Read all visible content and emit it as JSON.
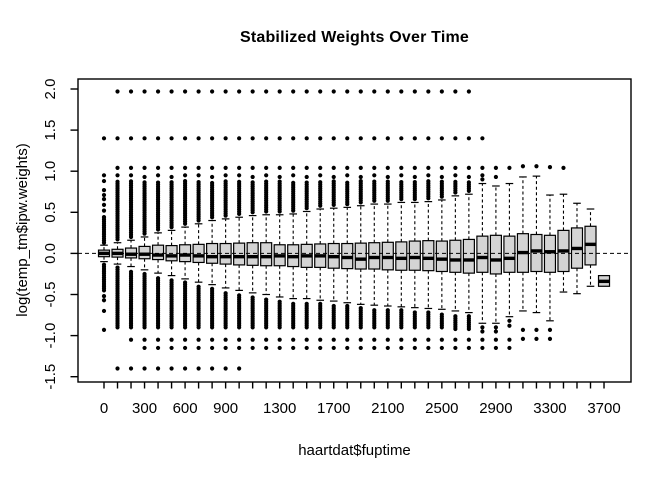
{
  "title": "Stabilized Weights Over Time",
  "colors": {
    "box_fill": "#d4d4d4",
    "line": "#000000",
    "background": "#ffffff"
  },
  "chart_data": {
    "type": "boxplot",
    "title": "Stabilized Weights Over Time",
    "xlabel": "haartdat$fuptime",
    "ylabel": "log(temp_tm$ipw.weights)",
    "ylim": [
      -1.56,
      2.14
    ],
    "reference_line": {
      "y": 0,
      "style": "dashed"
    },
    "grid": "off",
    "y_axis": {
      "tick_values": [
        2.0,
        1.5,
        1.0,
        0.5,
        0.0,
        -0.5,
        -1.0,
        -1.5
      ],
      "tick_labels": [
        "2.0",
        "1.5",
        "1.0",
        "0.5",
        "0.0",
        "-0.5",
        "-1.0",
        "-1.5"
      ]
    },
    "x_axis": {
      "labeled_ticks": [
        {
          "value": 0,
          "label": "0"
        },
        {
          "value": 300,
          "label": "300"
        },
        {
          "value": 600,
          "label": "600"
        },
        {
          "value": 900,
          "label": "900"
        },
        {
          "value": 1300,
          "label": "1300"
        },
        {
          "value": 1700,
          "label": "1700"
        },
        {
          "value": 2100,
          "label": "2100"
        },
        {
          "value": 2500,
          "label": "2500"
        },
        {
          "value": 2900,
          "label": "2900"
        },
        {
          "value": 3300,
          "label": "3300"
        },
        {
          "value": 3700,
          "label": "3700"
        }
      ]
    },
    "boxes": [
      {
        "x": 0,
        "median": 0.0,
        "q1": -0.04,
        "q3": 0.04,
        "whisker_low": -0.1,
        "whisker_high": 0.1,
        "out_high_band": [
          0.13,
          0.45
        ],
        "out_high": [
          0.52,
          0.59,
          0.66,
          0.71,
          0.77,
          0.88,
          0.95,
          1.4
        ],
        "out_low_band": [
          -0.13,
          -0.45
        ],
        "out_low": [
          -0.52,
          -0.57,
          -0.7,
          -0.93
        ]
      },
      {
        "x": 100,
        "median": 0.0,
        "q1": -0.045,
        "q3": 0.05,
        "whisker_low": -0.13,
        "whisker_high": 0.13,
        "out_high_band": [
          0.17,
          0.88
        ],
        "out_high": [
          0.95,
          1.04,
          1.4,
          1.97
        ],
        "out_low_band": [
          -0.17,
          -0.9
        ],
        "out_low": [
          -1.4
        ]
      },
      {
        "x": 200,
        "median": -0.01,
        "q1": -0.055,
        "q3": 0.065,
        "whisker_low": -0.16,
        "whisker_high": 0.16,
        "out_high_band": [
          0.2,
          0.88
        ],
        "out_high": [
          0.95,
          1.04,
          1.4,
          1.97
        ],
        "out_low_band": [
          -0.2,
          -0.9
        ],
        "out_low": [
          -1.05,
          -1.4
        ]
      },
      {
        "x": 300,
        "median": -0.01,
        "q1": -0.065,
        "q3": 0.085,
        "whisker_low": -0.2,
        "whisker_high": 0.2,
        "out_high_band": [
          0.24,
          0.88
        ],
        "out_high": [
          0.93,
          1.04,
          1.4,
          1.97
        ],
        "out_low_band": [
          -0.24,
          -0.9
        ],
        "out_low": [
          -1.05,
          -1.15,
          -1.4
        ]
      },
      {
        "x": 400,
        "median": -0.02,
        "q1": -0.075,
        "q3": 0.1,
        "whisker_low": -0.24,
        "whisker_high": 0.25,
        "out_high_band": [
          0.29,
          0.88
        ],
        "out_high": [
          0.95,
          1.04,
          1.4,
          1.97
        ],
        "out_low_band": [
          -0.28,
          -0.9
        ],
        "out_low": [
          -1.05,
          -1.15,
          -1.4
        ]
      },
      {
        "x": 500,
        "median": -0.03,
        "q1": -0.09,
        "q3": 0.095,
        "whisker_low": -0.27,
        "whisker_high": 0.28,
        "out_high_band": [
          0.32,
          0.88
        ],
        "out_high": [
          0.93,
          1.04,
          1.4,
          1.97
        ],
        "out_low_band": [
          -0.31,
          -0.9
        ],
        "out_low": [
          -1.05,
          -1.15,
          -1.4
        ]
      },
      {
        "x": 600,
        "median": -0.02,
        "q1": -0.1,
        "q3": 0.105,
        "whisker_low": -0.31,
        "whisker_high": 0.32,
        "out_high_band": [
          0.36,
          0.88
        ],
        "out_high": [
          0.95,
          1.04,
          1.4,
          1.97
        ],
        "out_low_band": [
          -0.35,
          -0.9
        ],
        "out_low": [
          -1.05,
          -1.15,
          -1.4
        ]
      },
      {
        "x": 700,
        "median": -0.03,
        "q1": -0.11,
        "q3": 0.11,
        "whisker_low": -0.35,
        "whisker_high": 0.36,
        "out_high_band": [
          0.4,
          0.88
        ],
        "out_high": [
          0.95,
          1.04,
          1.4,
          1.97
        ],
        "out_low_band": [
          -0.39,
          -0.9
        ],
        "out_low": [
          -1.05,
          -1.15,
          -1.4
        ]
      },
      {
        "x": 800,
        "median": -0.04,
        "q1": -0.12,
        "q3": 0.12,
        "whisker_low": -0.38,
        "whisker_high": 0.4,
        "out_high_band": [
          0.44,
          0.88
        ],
        "out_high": [
          0.93,
          1.04,
          1.4,
          1.97
        ],
        "out_low_band": [
          -0.42,
          -0.9
        ],
        "out_low": [
          -1.05,
          -1.15,
          -1.4
        ]
      },
      {
        "x": 900,
        "median": -0.04,
        "q1": -0.13,
        "q3": 0.12,
        "whisker_low": -0.42,
        "whisker_high": 0.42,
        "out_high_band": [
          0.46,
          0.88
        ],
        "out_high": [
          0.95,
          1.04,
          1.4,
          1.97
        ],
        "out_low_band": [
          -0.46,
          -0.9
        ],
        "out_low": [
          -1.05,
          -1.15,
          -1.4
        ]
      },
      {
        "x": 1000,
        "median": -0.04,
        "q1": -0.14,
        "q3": 0.125,
        "whisker_low": -0.45,
        "whisker_high": 0.44,
        "out_high_band": [
          0.48,
          0.88
        ],
        "out_high": [
          0.95,
          1.04,
          1.4,
          1.97
        ],
        "out_low_band": [
          -0.49,
          -0.9
        ],
        "out_low": [
          -1.05,
          -1.15,
          -1.4
        ]
      },
      {
        "x": 1100,
        "median": -0.04,
        "q1": -0.145,
        "q3": 0.13,
        "whisker_low": -0.48,
        "whisker_high": 0.46,
        "out_high_band": [
          0.5,
          0.88
        ],
        "out_high": [
          0.93,
          1.04,
          1.4,
          1.97
        ],
        "out_low_band": [
          -0.52,
          -0.9
        ],
        "out_low": [
          -1.05,
          -1.15
        ]
      },
      {
        "x": 1200,
        "median": -0.04,
        "q1": -0.15,
        "q3": 0.13,
        "whisker_low": -0.5,
        "whisker_high": 0.47,
        "out_high_band": [
          0.51,
          0.88
        ],
        "out_high": [
          0.95,
          1.04,
          1.4,
          1.97
        ],
        "out_low_band": [
          -0.54,
          -0.9
        ],
        "out_low": [
          -1.05,
          -1.15
        ]
      },
      {
        "x": 1300,
        "median": -0.03,
        "q1": -0.15,
        "q3": 0.105,
        "whisker_low": -0.53,
        "whisker_high": 0.47,
        "out_high_band": [
          0.51,
          0.88
        ],
        "out_high": [
          0.93,
          1.04,
          1.4,
          1.97
        ],
        "out_low_band": [
          -0.57,
          -0.9
        ],
        "out_low": [
          -1.05,
          -1.15
        ]
      },
      {
        "x": 1400,
        "median": -0.04,
        "q1": -0.16,
        "q3": 0.105,
        "whisker_low": -0.55,
        "whisker_high": 0.48,
        "out_high_band": [
          0.52,
          0.88
        ],
        "out_high": [
          0.95,
          1.04,
          1.4,
          1.97
        ],
        "out_low_band": [
          -0.59,
          -0.9
        ],
        "out_low": [
          -1.05,
          -1.15
        ]
      },
      {
        "x": 1500,
        "median": -0.03,
        "q1": -0.17,
        "q3": 0.11,
        "whisker_low": -0.55,
        "whisker_high": 0.51,
        "out_high_band": [
          0.55,
          0.88
        ],
        "out_high": [
          0.93,
          1.04,
          1.4,
          1.97
        ],
        "out_low_band": [
          -0.59,
          -0.9
        ],
        "out_low": [
          -1.05,
          -1.15
        ]
      },
      {
        "x": 1600,
        "median": -0.03,
        "q1": -0.17,
        "q3": 0.115,
        "whisker_low": -0.57,
        "whisker_high": 0.54,
        "out_high_band": [
          0.58,
          0.88
        ],
        "out_high": [
          0.95,
          1.04,
          1.4,
          1.97
        ],
        "out_low_band": [
          -0.61,
          -0.9
        ],
        "out_low": [
          -1.05,
          -1.15
        ]
      },
      {
        "x": 1700,
        "median": -0.04,
        "q1": -0.18,
        "q3": 0.12,
        "whisker_low": -0.58,
        "whisker_high": 0.55,
        "out_high_band": [
          0.59,
          0.88
        ],
        "out_high": [
          0.93,
          1.04,
          1.4,
          1.97
        ],
        "out_low_band": [
          -0.62,
          -0.9
        ],
        "out_low": [
          -1.05,
          -1.15
        ]
      },
      {
        "x": 1800,
        "median": -0.05,
        "q1": -0.185,
        "q3": 0.12,
        "whisker_low": -0.6,
        "whisker_high": 0.56,
        "out_high_band": [
          0.6,
          0.88
        ],
        "out_high": [
          0.95,
          1.04,
          1.4,
          1.97
        ],
        "out_low_band": [
          -0.64,
          -0.9
        ],
        "out_low": [
          -1.05,
          -1.15
        ]
      },
      {
        "x": 1900,
        "median": -0.07,
        "q1": -0.19,
        "q3": 0.125,
        "whisker_low": -0.62,
        "whisker_high": 0.58,
        "out_high_band": [
          0.62,
          0.88
        ],
        "out_high": [
          0.93,
          1.04,
          1.4,
          1.97
        ],
        "out_low_band": [
          -0.66,
          -0.9
        ],
        "out_low": [
          -1.05,
          -1.15
        ]
      },
      {
        "x": 2000,
        "median": -0.05,
        "q1": -0.19,
        "q3": 0.13,
        "whisker_low": -0.63,
        "whisker_high": 0.6,
        "out_high_band": [
          0.64,
          0.88
        ],
        "out_high": [
          0.95,
          1.04,
          1.4,
          1.97
        ],
        "out_low_band": [
          -0.67,
          -0.9
        ],
        "out_low": [
          -1.05,
          -1.15
        ]
      },
      {
        "x": 2100,
        "median": -0.05,
        "q1": -0.2,
        "q3": 0.135,
        "whisker_low": -0.64,
        "whisker_high": 0.6,
        "out_high_band": [
          0.64,
          0.88
        ],
        "out_high": [
          0.93,
          1.04,
          1.4,
          1.97
        ],
        "out_low_band": [
          -0.68,
          -0.9
        ],
        "out_low": [
          -1.05,
          -1.15
        ]
      },
      {
        "x": 2200,
        "median": -0.06,
        "q1": -0.205,
        "q3": 0.14,
        "whisker_low": -0.65,
        "whisker_high": 0.62,
        "out_high_band": [
          0.66,
          0.88
        ],
        "out_high": [
          0.95,
          1.04,
          1.4,
          1.97
        ],
        "out_low_band": [
          -0.69,
          -0.9
        ],
        "out_low": [
          -1.05,
          -1.15
        ]
      },
      {
        "x": 2300,
        "median": -0.05,
        "q1": -0.205,
        "q3": 0.15,
        "whisker_low": -0.66,
        "whisker_high": 0.62,
        "out_high_band": [
          0.66,
          0.88
        ],
        "out_high": [
          0.93,
          1.04,
          1.4,
          1.97
        ],
        "out_low_band": [
          -0.7,
          -0.9
        ],
        "out_low": [
          -1.05,
          -1.15
        ]
      },
      {
        "x": 2400,
        "median": -0.06,
        "q1": -0.21,
        "q3": 0.155,
        "whisker_low": -0.67,
        "whisker_high": 0.63,
        "out_high_band": [
          0.67,
          0.88
        ],
        "out_high": [
          0.95,
          1.04,
          1.4,
          1.97
        ],
        "out_low_band": [
          -0.71,
          -0.9
        ],
        "out_low": [
          -1.05,
          -1.15
        ]
      },
      {
        "x": 2500,
        "median": -0.07,
        "q1": -0.22,
        "q3": 0.15,
        "whisker_low": -0.68,
        "whisker_high": 0.65,
        "out_high_band": [
          0.69,
          0.88
        ],
        "out_high": [
          0.93,
          1.04,
          1.4,
          1.97
        ],
        "out_low_band": [
          -0.72,
          -0.9
        ],
        "out_low": [
          -1.05,
          -1.15
        ]
      },
      {
        "x": 2600,
        "median": -0.08,
        "q1": -0.23,
        "q3": 0.16,
        "whisker_low": -0.7,
        "whisker_high": 0.7,
        "out_high_band": [
          0.74,
          0.88
        ],
        "out_high": [
          0.95,
          1.04,
          1.4,
          1.97
        ],
        "out_low_band": [
          -0.75,
          -0.92
        ],
        "out_low": [
          -1.05,
          -1.15
        ]
      },
      {
        "x": 2700,
        "median": -0.08,
        "q1": -0.24,
        "q3": 0.17,
        "whisker_low": -0.72,
        "whisker_high": 0.72,
        "out_high_band": [
          0.76,
          0.88
        ],
        "out_high": [
          0.93,
          1.04,
          1.4,
          1.97
        ],
        "out_low_band": [
          -0.76,
          -0.92
        ],
        "out_low": [
          -1.05,
          -1.15
        ]
      },
      {
        "x": 2800,
        "median": -0.05,
        "q1": -0.23,
        "q3": 0.21,
        "whisker_low": -0.85,
        "whisker_high": 0.85,
        "out_high_band": null,
        "out_high": [
          0.9,
          0.95,
          1.04,
          1.4
        ],
        "out_low_band": null,
        "out_low": [
          -0.9,
          -0.95,
          -1.05,
          -1.15
        ]
      },
      {
        "x": 2900,
        "median": -0.08,
        "q1": -0.25,
        "q3": 0.22,
        "whisker_low": -0.85,
        "whisker_high": 0.82,
        "out_high_band": null,
        "out_high": [
          0.93,
          1.04
        ],
        "out_low_band": null,
        "out_low": [
          -0.9,
          -0.95,
          -1.05,
          -1.15
        ]
      },
      {
        "x": 3000,
        "median": -0.06,
        "q1": -0.23,
        "q3": 0.21,
        "whisker_low": -0.77,
        "whisker_high": 0.85,
        "out_high_band": null,
        "out_high": [
          1.04
        ],
        "out_low_band": null,
        "out_low": [
          -0.82,
          -0.88,
          -1.05,
          -1.15
        ]
      },
      {
        "x": 3100,
        "median": 0.01,
        "q1": -0.23,
        "q3": 0.24,
        "whisker_low": -0.7,
        "whisker_high": 0.93,
        "out_high_band": null,
        "out_high": [
          1.06
        ],
        "out_low_band": null,
        "out_low": [
          -0.93,
          -1.04
        ]
      },
      {
        "x": 3200,
        "median": 0.03,
        "q1": -0.22,
        "q3": 0.23,
        "whisker_low": -0.72,
        "whisker_high": 0.94,
        "out_high_band": null,
        "out_high": [
          1.06
        ],
        "out_low_band": null,
        "out_low": [
          -0.93,
          -1.04
        ]
      },
      {
        "x": 3300,
        "median": 0.02,
        "q1": -0.23,
        "q3": 0.22,
        "whisker_low": -0.82,
        "whisker_high": 0.71,
        "out_high_band": null,
        "out_high": [
          1.05
        ],
        "out_low_band": null,
        "out_low": [
          -0.93,
          -1.04
        ]
      },
      {
        "x": 3400,
        "median": 0.03,
        "q1": -0.22,
        "q3": 0.28,
        "whisker_low": -0.47,
        "whisker_high": 0.72,
        "out_high_band": null,
        "out_high": [
          1.04
        ],
        "out_low_band": null,
        "out_low": []
      },
      {
        "x": 3500,
        "median": 0.06,
        "q1": -0.18,
        "q3": 0.31,
        "whisker_low": -0.49,
        "whisker_high": 0.61,
        "out_high_band": null,
        "out_high": [],
        "out_low_band": null,
        "out_low": []
      },
      {
        "x": 3600,
        "median": 0.11,
        "q1": -0.14,
        "q3": 0.33,
        "whisker_low": -0.4,
        "whisker_high": 0.54,
        "out_high_band": null,
        "out_high": [],
        "out_low_band": null,
        "out_low": []
      },
      {
        "x": 3700,
        "median": -0.34,
        "q1": -0.4,
        "q3": -0.27,
        "whisker_low": -0.4,
        "whisker_high": -0.27,
        "out_high_band": null,
        "out_high": [],
        "out_low_band": null,
        "out_low": []
      }
    ]
  }
}
